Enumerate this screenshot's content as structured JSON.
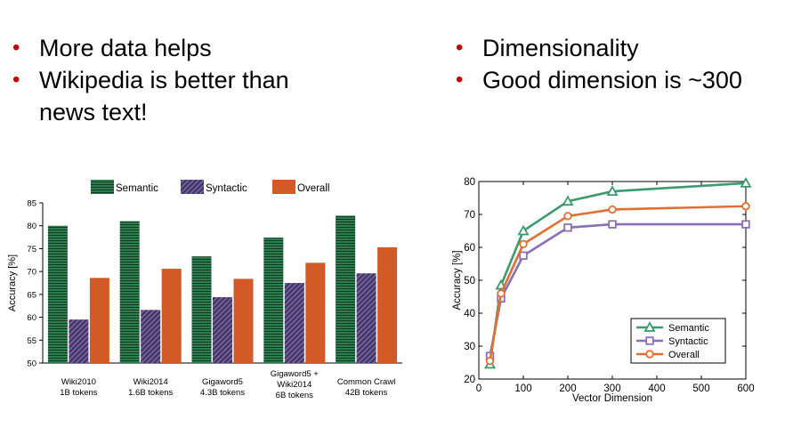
{
  "bullets_left": [
    "More data helps",
    "Wikipedia is better than news text!"
  ],
  "bullets_right": [
    "Dimensionality",
    "Good dimension is ~300"
  ],
  "colors": {
    "bullet": "#c00000",
    "semantic_bar": "#2e7d4f",
    "syntactic_bar": "#6b5b95",
    "overall_bar": "#d15a27",
    "semantic_line": "#3c9a6e",
    "syntactic_line": "#8a6fb5",
    "overall_line": "#e07032"
  },
  "chart_data": [
    {
      "type": "bar",
      "title": "",
      "xlabel": "",
      "ylabel": "Accuracy [%]",
      "ylim": [
        50,
        85
      ],
      "yticks": [
        50,
        55,
        60,
        65,
        70,
        75,
        80,
        85
      ],
      "categories": [
        [
          "Wiki2010",
          "1B tokens"
        ],
        [
          "Wiki2014",
          "1.6B tokens"
        ],
        [
          "Gigaword5",
          "4.3B tokens"
        ],
        [
          "Gigaword5 +",
          "Wiki2014",
          "6B tokens"
        ],
        [
          "Common Crawl",
          "42B tokens"
        ]
      ],
      "series": [
        {
          "name": "Semantic",
          "values": [
            80,
            81,
            73.3,
            77.4,
            82.2
          ]
        },
        {
          "name": "Syntactic",
          "values": [
            59.5,
            61.6,
            64.4,
            67.5,
            69.6
          ]
        },
        {
          "name": "Overall",
          "values": [
            68.6,
            70.6,
            68.4,
            71.9,
            75.3
          ]
        }
      ],
      "legend": "top"
    },
    {
      "type": "line",
      "title": "",
      "xlabel": "Vector Dimension",
      "ylabel": "Accuracy [%]",
      "xlim": [
        0,
        600
      ],
      "ylim": [
        20,
        80
      ],
      "xticks": [
        0,
        100,
        200,
        300,
        400,
        500,
        600
      ],
      "yticks": [
        20,
        30,
        40,
        50,
        60,
        70,
        80
      ],
      "x": [
        25,
        50,
        100,
        200,
        300,
        600
      ],
      "series": [
        {
          "name": "Semantic",
          "marker": "triangle",
          "values": [
            24.5,
            48.5,
            65,
            74,
            77,
            79.5
          ]
        },
        {
          "name": "Syntactic",
          "marker": "square",
          "values": [
            27,
            44.5,
            57.5,
            66,
            67,
            67
          ]
        },
        {
          "name": "Overall",
          "marker": "circle",
          "values": [
            25.5,
            46,
            61,
            69.5,
            71.5,
            72.5
          ]
        }
      ],
      "legend": "lower-right"
    }
  ]
}
